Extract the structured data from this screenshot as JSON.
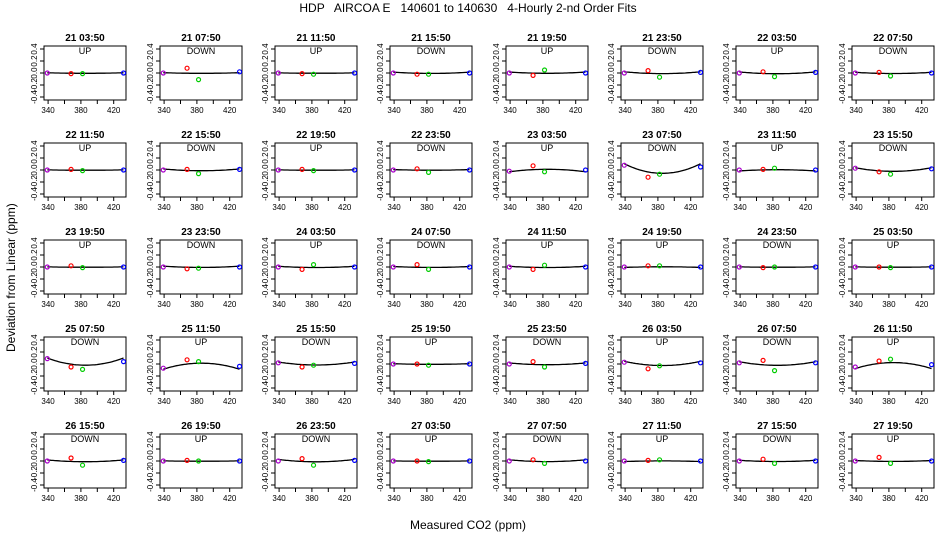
{
  "title": "HDP   AIRCOA E   140601 to 140630   4-Hourly 2-nd Order Fits",
  "colors": {
    "axis": "#000000",
    "curve": "#000000",
    "point_red": "#ff0000",
    "point_green": "#00cc00",
    "point_blue": "#0000ff",
    "point_purple": "#aa00cc"
  },
  "chart_data": {
    "type": "scatter",
    "layout": "5 rows x 8 panels",
    "xlabel": "Measured CO2 (ppm)",
    "ylabel": "Deviation from Linear (ppm)",
    "xlim": [
      335,
      435
    ],
    "ylim": [
      -0.45,
      0.45
    ],
    "xticks": [
      "340",
      "380",
      "420"
    ],
    "xticks_minor": [
      360,
      400
    ],
    "yticks": [
      "-0.4",
      "-0.2",
      "0.0",
      "0.2",
      "0.4"
    ],
    "standard_x": [
      339,
      368,
      382,
      432
    ],
    "panels": [
      {
        "time": "21 03:50",
        "dir": "UP",
        "curve": [
          -0.002,
          0,
          0.008
        ],
        "pts": [
          0,
          -0.01,
          -0.01,
          0
        ]
      },
      {
        "time": "21 07:50",
        "dir": "DOWN",
        "curve": [
          -0.002,
          0,
          0.01
        ],
        "pts": [
          0,
          0.08,
          -0.11,
          0.02
        ]
      },
      {
        "time": "21 11:50",
        "dir": "UP",
        "curve": [
          -0.002,
          0,
          0.006
        ],
        "pts": [
          0,
          -0.01,
          -0.02,
          0
        ]
      },
      {
        "time": "21 15:50",
        "dir": "DOWN",
        "curve": [
          0,
          0,
          0.02
        ],
        "pts": [
          0,
          -0.02,
          -0.02,
          0
        ]
      },
      {
        "time": "21 19:50",
        "dir": "UP",
        "curve": [
          0.002,
          0,
          0.02
        ],
        "pts": [
          0,
          -0.04,
          0.05,
          0
        ]
      },
      {
        "time": "21 23:50",
        "dir": "DOWN",
        "curve": [
          0,
          0,
          0.03
        ],
        "pts": [
          0,
          0.04,
          -0.07,
          0.01
        ]
      },
      {
        "time": "22 03:50",
        "dir": "UP",
        "curve": [
          -0.002,
          0,
          0.03
        ],
        "pts": [
          0,
          0.02,
          -0.06,
          0.01
        ]
      },
      {
        "time": "22 07:50",
        "dir": "DOWN",
        "curve": [
          -0.002,
          0,
          0.02
        ],
        "pts": [
          0,
          0.01,
          -0.05,
          0
        ]
      },
      {
        "time": "22 11:50",
        "dir": "UP",
        "curve": [
          -0.002,
          0,
          0.006
        ],
        "pts": [
          0,
          0.01,
          -0.01,
          0
        ]
      },
      {
        "time": "22 15:50",
        "dir": "DOWN",
        "curve": [
          -0.002,
          0,
          0.03
        ],
        "pts": [
          0,
          0.01,
          -0.06,
          0.01
        ]
      },
      {
        "time": "22 19:50",
        "dir": "UP",
        "curve": [
          -0.002,
          0,
          0.006
        ],
        "pts": [
          0,
          0.01,
          -0.01,
          0
        ]
      },
      {
        "time": "22 23:50",
        "dir": "DOWN",
        "curve": [
          0,
          0,
          0.01
        ],
        "pts": [
          0,
          0.02,
          -0.04,
          0
        ]
      },
      {
        "time": "23 03:50",
        "dir": "UP",
        "curve": [
          -0.002,
          0,
          -0.04
        ],
        "pts": [
          -0.02,
          0.07,
          -0.03,
          0
        ]
      },
      {
        "time": "23 07:50",
        "dir": "DOWN",
        "curve": [
          -0.002,
          0,
          0.16
        ],
        "pts": [
          0.08,
          -0.12,
          -0.07,
          0.05
        ]
      },
      {
        "time": "23 11:50",
        "dir": "UP",
        "curve": [
          -0.002,
          0,
          -0.02
        ],
        "pts": [
          0,
          0.01,
          0.03,
          0
        ]
      },
      {
        "time": "23 15:50",
        "dir": "DOWN",
        "curve": [
          -0.002,
          0,
          0.06
        ],
        "pts": [
          0.03,
          -0.03,
          -0.07,
          0.02
        ]
      },
      {
        "time": "23 19:50",
        "dir": "UP",
        "curve": [
          -0.002,
          0,
          0.006
        ],
        "pts": [
          0,
          0.02,
          -0.01,
          0
        ]
      },
      {
        "time": "23 23:50",
        "dir": "DOWN",
        "curve": [
          0,
          0,
          0.02
        ],
        "pts": [
          0,
          -0.03,
          -0.02,
          0
        ]
      },
      {
        "time": "24 03:50",
        "dir": "UP",
        "curve": [
          -0.002,
          0,
          0.02
        ],
        "pts": [
          0,
          -0.04,
          0.04,
          0
        ]
      },
      {
        "time": "24 07:50",
        "dir": "DOWN",
        "curve": [
          -0.002,
          0,
          0.015
        ],
        "pts": [
          0,
          0.04,
          -0.04,
          0
        ]
      },
      {
        "time": "24 11:50",
        "dir": "UP",
        "curve": [
          -0.002,
          0,
          0.02
        ],
        "pts": [
          0,
          -0.04,
          0.03,
          0
        ]
      },
      {
        "time": "24 19:50",
        "dir": "UP",
        "curve": [
          0,
          0,
          -0.01
        ],
        "pts": [
          0,
          0.02,
          0.02,
          0
        ]
      },
      {
        "time": "24 23:50",
        "dir": "DOWN",
        "curve": [
          -0.002,
          0,
          0.006
        ],
        "pts": [
          0,
          -0.01,
          0,
          0
        ]
      },
      {
        "time": "25 03:50",
        "dir": "UP",
        "curve": [
          -0.002,
          0,
          0.006
        ],
        "pts": [
          0,
          0,
          -0.01,
          0
        ]
      },
      {
        "time": "25 07:50",
        "dir": "DOWN",
        "curve": [
          0.02,
          0,
          0.12
        ],
        "pts": [
          0.09,
          -0.05,
          -0.09,
          0.04
        ]
      },
      {
        "time": "25 11:50",
        "dir": "UP",
        "curve": [
          -0.02,
          0,
          -0.1
        ],
        "pts": [
          -0.07,
          0.07,
          0.04,
          -0.04
        ]
      },
      {
        "time": "25 15:50",
        "dir": "DOWN",
        "curve": [
          0,
          0,
          0.05
        ],
        "pts": [
          0.02,
          -0.05,
          -0.02,
          0.01
        ]
      },
      {
        "time": "25 19:50",
        "dir": "UP",
        "curve": [
          -0.002,
          0,
          0.01
        ],
        "pts": [
          0,
          0,
          -0.02,
          0
        ]
      },
      {
        "time": "25 23:50",
        "dir": "DOWN",
        "curve": [
          -0.002,
          0,
          0.03
        ],
        "pts": [
          0,
          0.04,
          -0.05,
          0.01
        ]
      },
      {
        "time": "26 03:50",
        "dir": "UP",
        "curve": [
          -0.002,
          0,
          0.07
        ],
        "pts": [
          0.03,
          -0.08,
          -0.03,
          0.02
        ]
      },
      {
        "time": "26 07:50",
        "dir": "DOWN",
        "curve": [
          -0.002,
          0,
          0.06
        ],
        "pts": [
          0.02,
          0.06,
          -0.11,
          0.02
        ]
      },
      {
        "time": "26 11:50",
        "dir": "UP",
        "curve": [
          -0.01,
          0,
          -0.1
        ],
        "pts": [
          -0.05,
          0.05,
          0.08,
          -0.01
        ]
      },
      {
        "time": "26 15:50",
        "dir": "DOWN",
        "curve": [
          -0.002,
          0,
          0.03
        ],
        "pts": [
          0,
          0.05,
          -0.07,
          0.01
        ]
      },
      {
        "time": "26 19:50",
        "dir": "UP",
        "curve": [
          -0.002,
          0,
          0.006
        ],
        "pts": [
          0,
          0.01,
          0,
          0
        ]
      },
      {
        "time": "26 23:50",
        "dir": "DOWN",
        "curve": [
          0,
          0,
          0.04
        ],
        "pts": [
          0,
          0.04,
          -0.07,
          0.01
        ]
      },
      {
        "time": "27 03:50",
        "dir": "UP",
        "curve": [
          -0.002,
          0,
          0.005
        ],
        "pts": [
          0,
          0,
          -0.01,
          0
        ]
      },
      {
        "time": "27 07:50",
        "dir": "DOWN",
        "curve": [
          0,
          0,
          0.03
        ],
        "pts": [
          0,
          0.02,
          -0.04,
          0
        ]
      },
      {
        "time": "27 11:50",
        "dir": "UP",
        "curve": [
          -0.002,
          0,
          -0.01
        ],
        "pts": [
          0,
          0.01,
          0.02,
          0
        ]
      },
      {
        "time": "27 15:50",
        "dir": "DOWN",
        "curve": [
          -0.002,
          0,
          0.02
        ],
        "pts": [
          0,
          0.03,
          -0.04,
          0
        ]
      },
      {
        "time": "27 19:50",
        "dir": "UP",
        "curve": [
          -0.002,
          0,
          0.015
        ],
        "pts": [
          0,
          0.06,
          -0.04,
          0
        ]
      }
    ]
  }
}
